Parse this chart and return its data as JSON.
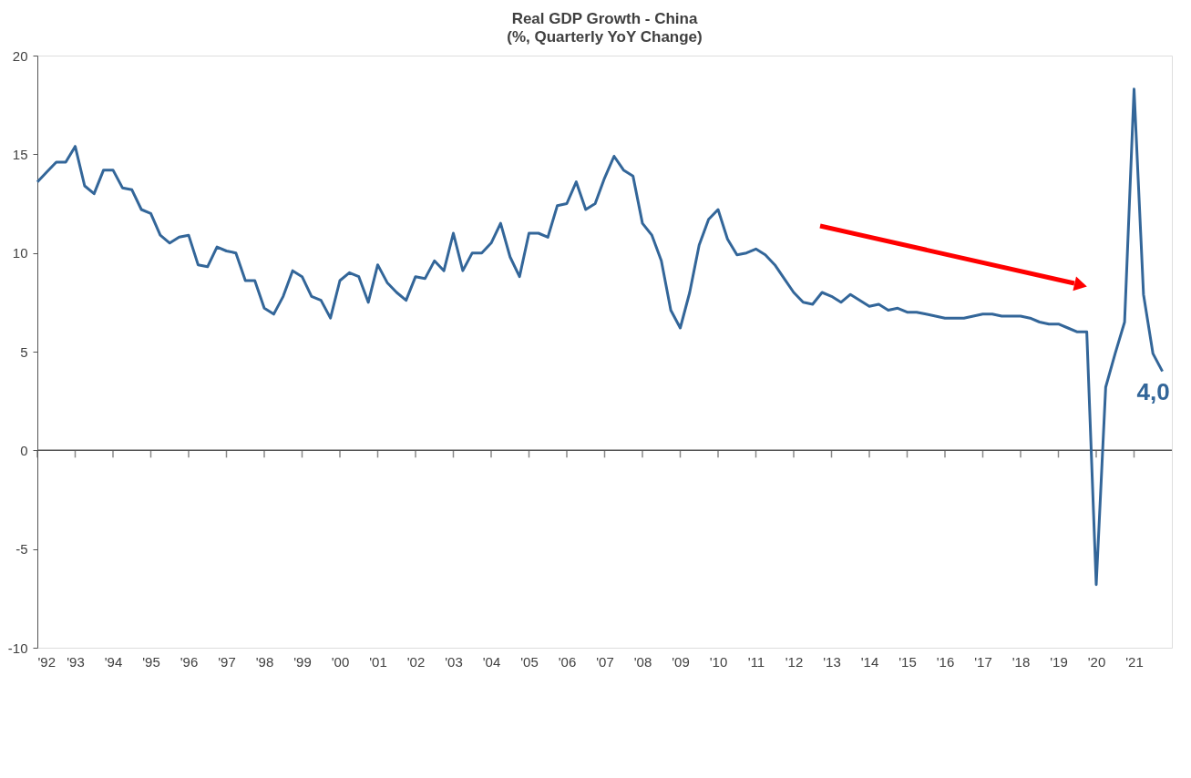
{
  "chart_data": {
    "type": "line",
    "title": "Real GDP Growth  - China",
    "subtitle": "(%,  Quarterly YoY Change)",
    "x": [
      1992,
      1992.25,
      1992.5,
      1992.75,
      1993,
      1993.25,
      1993.5,
      1993.75,
      1994,
      1994.25,
      1994.5,
      1994.75,
      1995,
      1995.25,
      1995.5,
      1995.75,
      1996,
      1996.25,
      1996.5,
      1996.75,
      1997,
      1997.25,
      1997.5,
      1997.75,
      1998,
      1998.25,
      1998.5,
      1998.75,
      1999,
      1999.25,
      1999.5,
      1999.75,
      2000,
      2000.25,
      2000.5,
      2000.75,
      2001,
      2001.25,
      2001.5,
      2001.75,
      2002,
      2002.25,
      2002.5,
      2002.75,
      2003,
      2003.25,
      2003.5,
      2003.75,
      2004,
      2004.25,
      2004.5,
      2004.75,
      2005,
      2005.25,
      2005.5,
      2005.75,
      2006,
      2006.25,
      2006.5,
      2006.75,
      2007,
      2007.25,
      2007.5,
      2007.75,
      2008,
      2008.25,
      2008.5,
      2008.75,
      2009,
      2009.25,
      2009.5,
      2009.75,
      2010,
      2010.25,
      2010.5,
      2010.75,
      2011,
      2011.25,
      2011.5,
      2011.75,
      2012,
      2012.25,
      2012.5,
      2012.75,
      2013,
      2013.25,
      2013.5,
      2013.75,
      2014,
      2014.25,
      2014.5,
      2014.75,
      2015,
      2015.25,
      2015.5,
      2015.75,
      2016,
      2016.25,
      2016.5,
      2016.75,
      2017,
      2017.25,
      2017.5,
      2017.75,
      2018,
      2018.25,
      2018.5,
      2018.75,
      2019,
      2019.25,
      2019.5,
      2019.75,
      2020,
      2020.25,
      2020.5,
      2020.75,
      2021,
      2021.25,
      2021.5,
      2021.75
    ],
    "series": [
      {
        "color": "#336699",
        "values": [
          13.6,
          14.1,
          14.6,
          14.6,
          15.4,
          13.4,
          13.0,
          14.2,
          14.2,
          13.3,
          13.2,
          12.2,
          12.0,
          10.9,
          10.5,
          10.8,
          10.9,
          9.4,
          9.3,
          10.3,
          10.1,
          10.0,
          8.6,
          8.6,
          7.2,
          6.9,
          7.8,
          9.1,
          8.8,
          7.8,
          7.6,
          6.7,
          8.6,
          9.0,
          8.8,
          7.5,
          9.4,
          8.5,
          8.0,
          7.6,
          8.8,
          8.7,
          9.6,
          9.1,
          11.0,
          9.1,
          10.0,
          10.0,
          10.5,
          11.5,
          9.8,
          8.8,
          11.0,
          11.0,
          10.8,
          12.4,
          12.5,
          13.6,
          12.2,
          12.5,
          13.8,
          14.9,
          14.2,
          13.9,
          11.5,
          10.9,
          9.6,
          7.1,
          6.2,
          8.0,
          10.4,
          11.7,
          12.2,
          10.7,
          9.9,
          10.0,
          10.2,
          9.9,
          9.4,
          8.7,
          8.0,
          7.5,
          7.4,
          8.0,
          7.8,
          7.5,
          7.9,
          7.6,
          7.3,
          7.4,
          7.1,
          7.2,
          7.0,
          7.0,
          6.9,
          6.8,
          6.7,
          6.7,
          6.7,
          6.8,
          6.9,
          6.9,
          6.8,
          6.8,
          6.8,
          6.7,
          6.5,
          6.4,
          6.4,
          6.2,
          6.0,
          6.0,
          -6.8,
          3.2,
          4.9,
          6.5,
          18.3,
          7.9,
          4.9,
          4.0
        ]
      }
    ],
    "xlim": [
      1992,
      2022
    ],
    "xticks": [
      {
        "value": 1992,
        "label": "'92"
      },
      {
        "value": 1993,
        "label": "'93"
      },
      {
        "value": 1994,
        "label": "'94"
      },
      {
        "value": 1995,
        "label": "'95"
      },
      {
        "value": 1996,
        "label": "'96"
      },
      {
        "value": 1997,
        "label": "'97"
      },
      {
        "value": 1998,
        "label": "'98"
      },
      {
        "value": 1999,
        "label": "'99"
      },
      {
        "value": 2000,
        "label": "'00"
      },
      {
        "value": 2001,
        "label": "'01"
      },
      {
        "value": 2002,
        "label": "'02"
      },
      {
        "value": 2003,
        "label": "'03"
      },
      {
        "value": 2004,
        "label": "'04"
      },
      {
        "value": 2005,
        "label": "'05"
      },
      {
        "value": 2006,
        "label": "'06"
      },
      {
        "value": 2007,
        "label": "'07"
      },
      {
        "value": 2008,
        "label": "'08"
      },
      {
        "value": 2009,
        "label": "'09"
      },
      {
        "value": 2010,
        "label": "'10"
      },
      {
        "value": 2011,
        "label": "'11"
      },
      {
        "value": 2012,
        "label": "'12"
      },
      {
        "value": 2013,
        "label": "'13"
      },
      {
        "value": 2014,
        "label": "'14"
      },
      {
        "value": 2015,
        "label": "'15"
      },
      {
        "value": 2016,
        "label": "'16"
      },
      {
        "value": 2017,
        "label": "'17"
      },
      {
        "value": 2018,
        "label": "'18"
      },
      {
        "value": 2019,
        "label": "'19"
      },
      {
        "value": 2020,
        "label": "'20"
      },
      {
        "value": 2021,
        "label": "'21"
      }
    ],
    "ylim": [
      -10,
      20
    ],
    "yticks": [
      -10,
      -5,
      0,
      5,
      10,
      15,
      20
    ],
    "ref_lines": [
      {
        "axis": "y",
        "value": 0,
        "color": "#555555"
      }
    ],
    "annotations": [
      {
        "text": "4,0",
        "x": 2021.75,
        "y": 4.0
      }
    ],
    "grid": false,
    "marker": "none",
    "line_style": "solid"
  }
}
